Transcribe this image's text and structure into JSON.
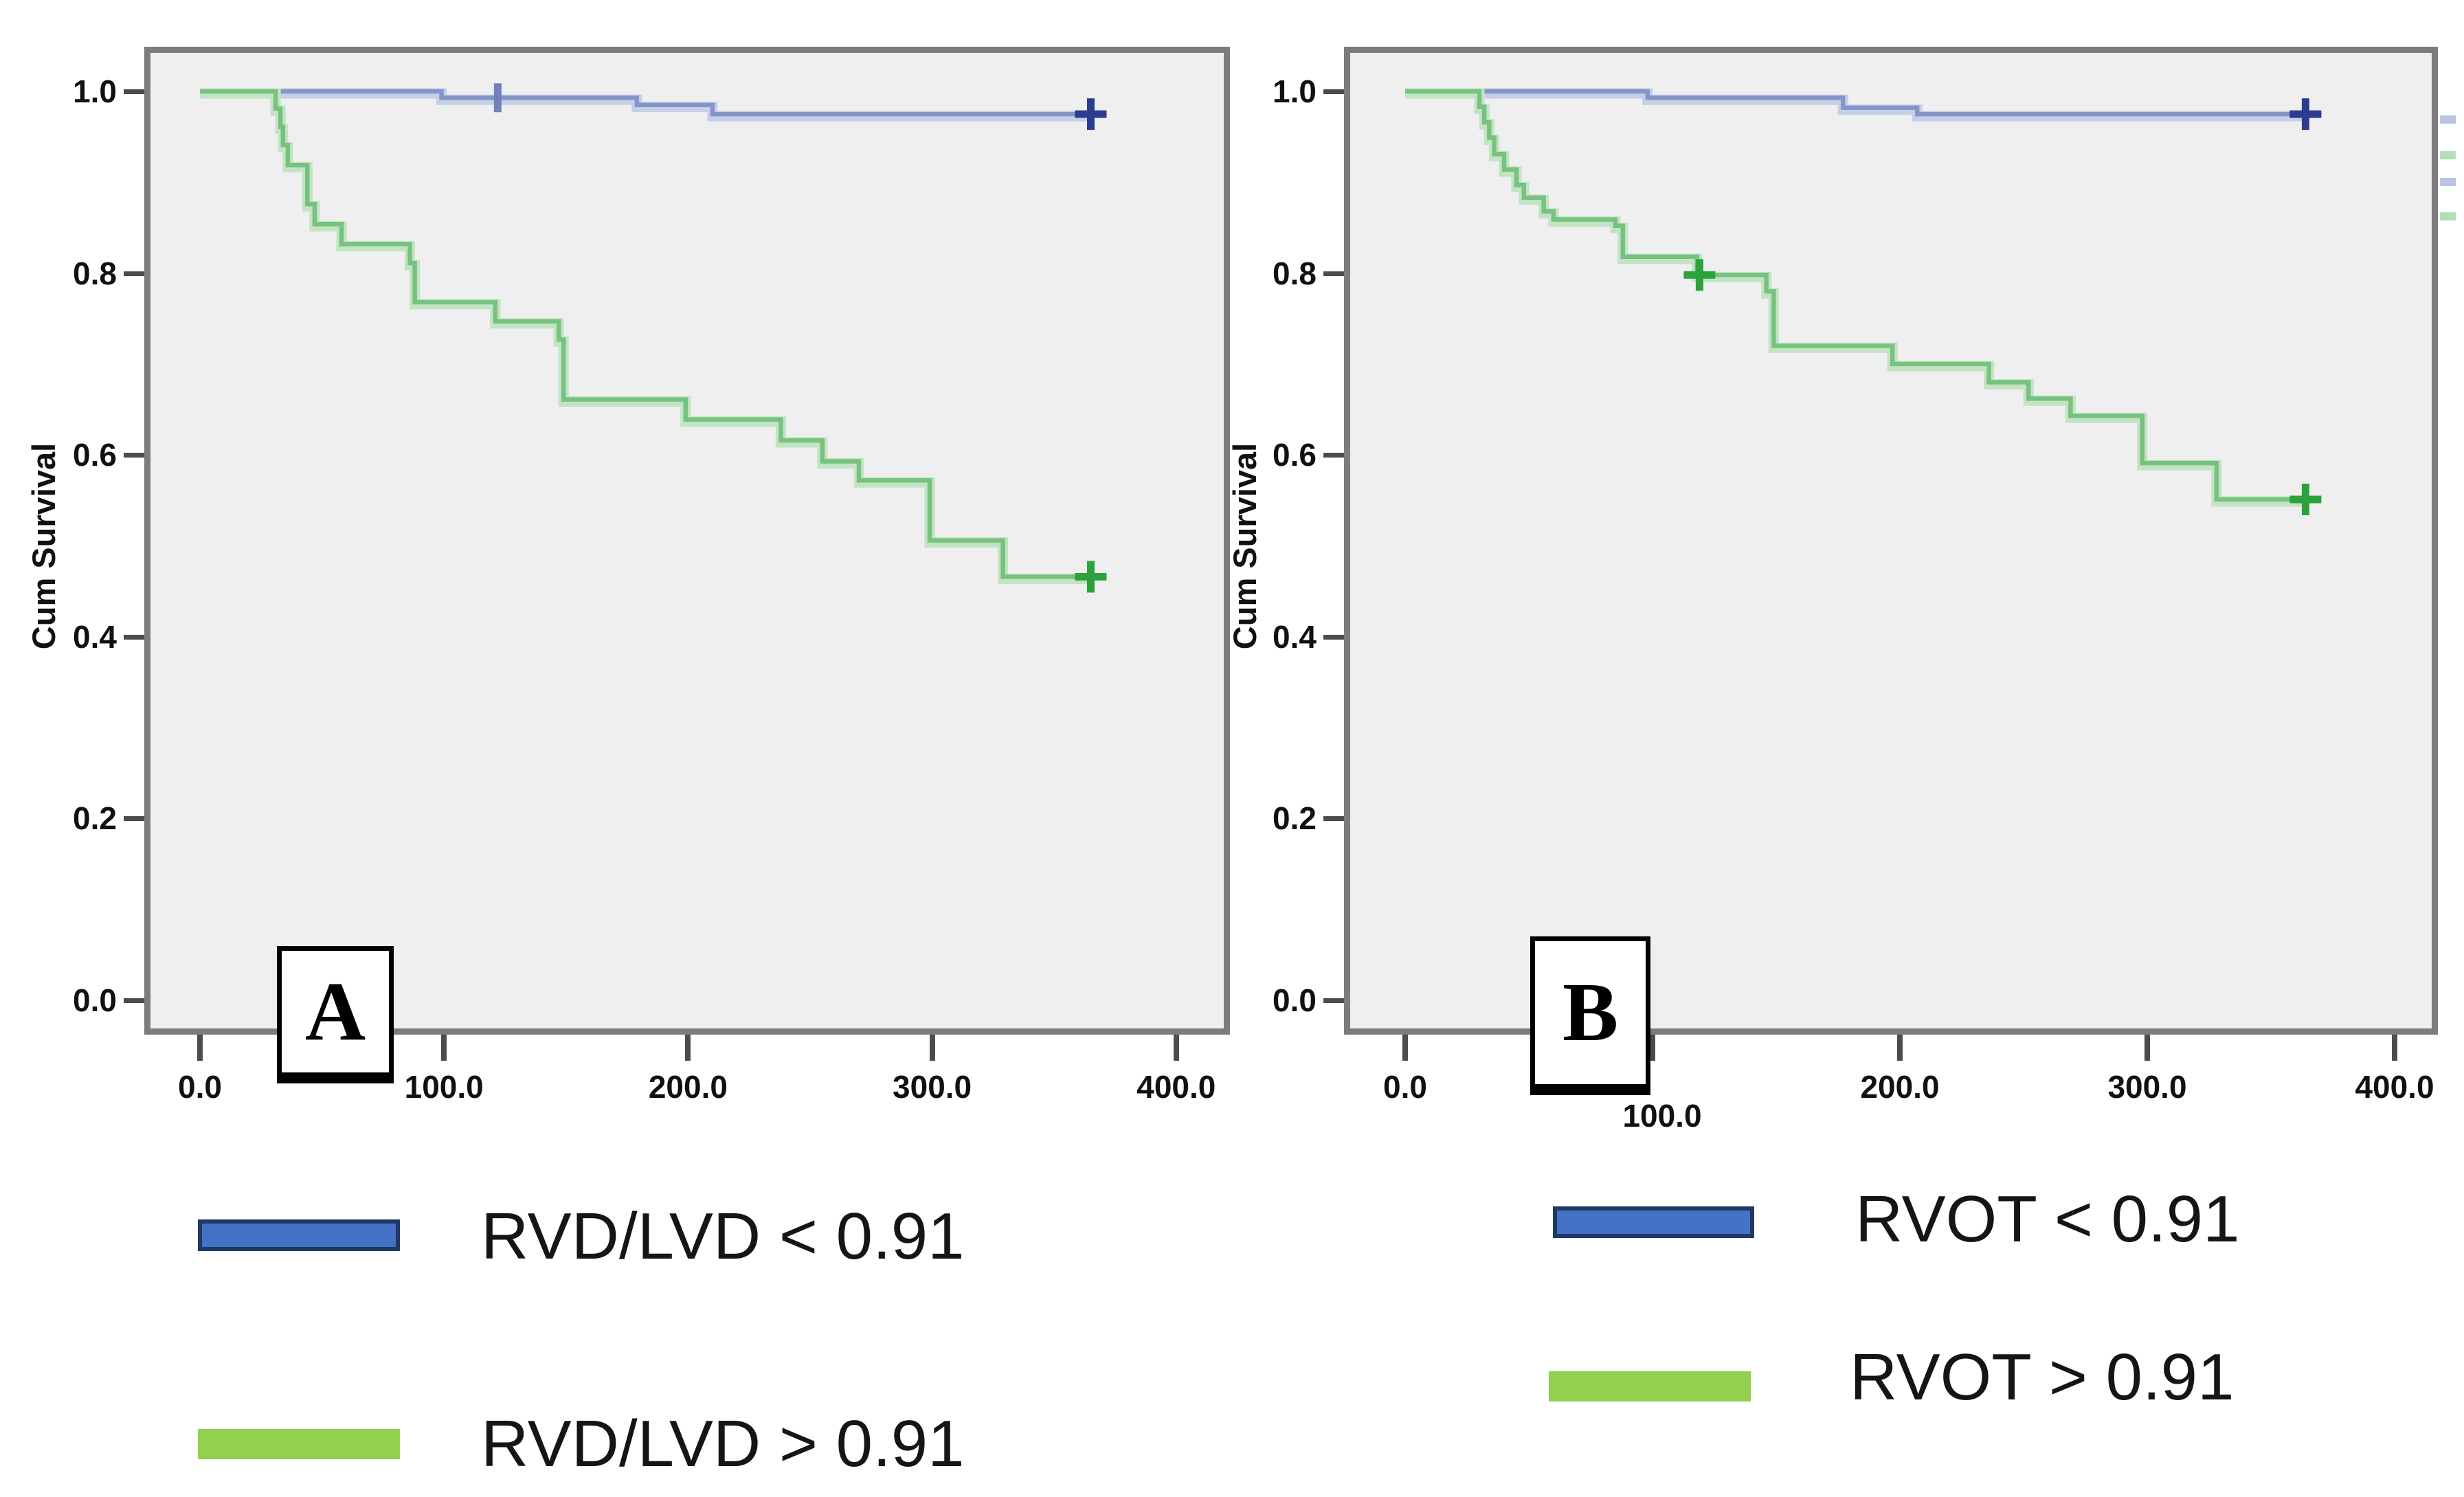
{
  "palette": {
    "blue_line": "#8496c8",
    "blue_halo": "#c6cfe8",
    "blue_censor": "#2c3d8f",
    "blue_censor_tick": "#7181bb",
    "green_line": "#77c27f",
    "green_halo": "#c2e4c5",
    "green_censor": "#2ba33a",
    "legend_blue_fill": "#4472c4",
    "legend_blue_border": "#1f3864",
    "legend_green_fill": "#92d050",
    "plot_bg": "#efefef",
    "plot_border": "#7c7c7c",
    "tick_color": "#4c4c4c",
    "text_color": "#111111"
  },
  "panels": [
    {
      "letter": "A",
      "y_axis_title": "Cum Survival"
    },
    {
      "letter": "B",
      "y_axis_title": "Cum Survival"
    }
  ],
  "legends": [
    {
      "panel": "A",
      "items": [
        {
          "swatch": "blue",
          "label": "RVD/LVD < 0.91"
        },
        {
          "swatch": "green",
          "label": "RVD/LVD > 0.91"
        }
      ]
    },
    {
      "panel": "B",
      "items": [
        {
          "swatch": "blue",
          "label": "RVOT < 0.91"
        },
        {
          "swatch": "green",
          "label": "RVOT > 0.91"
        }
      ]
    }
  ],
  "edge_marks": [
    {
      "y": 168,
      "color": "blue"
    },
    {
      "y": 220,
      "color": "green"
    },
    {
      "y": 259,
      "color": "blue"
    },
    {
      "y": 309,
      "color": "green"
    }
  ],
  "chart_data": [
    {
      "panel": "A",
      "type": "line",
      "subtype": "kaplan-meier-step",
      "title": "",
      "xlabel": "",
      "ylabel": "Cum Survival",
      "xlim": [
        0,
        422
      ],
      "ylim": [
        0,
        1.04
      ],
      "grid": false,
      "legend_position": "below",
      "x_ticks": [
        {
          "v": 0,
          "label": "0.0"
        },
        {
          "v": 100,
          "label": "100.0"
        },
        {
          "v": 200,
          "label": "200.0"
        },
        {
          "v": 300,
          "label": "300.0"
        },
        {
          "v": 400,
          "label": "400.0"
        }
      ],
      "y_ticks": [
        {
          "v": 1.0,
          "label": "1.0"
        },
        {
          "v": 0.8,
          "label": "0.8"
        },
        {
          "v": 0.6,
          "label": "0.6"
        },
        {
          "v": 0.4,
          "label": "0.4"
        },
        {
          "v": 0.2,
          "label": "0.2"
        },
        {
          "v": 0.0,
          "label": "0.0"
        }
      ],
      "series": [
        {
          "name": "RVD/LVD < 0.91",
          "color": "blue",
          "points": [
            [
              0,
              1.0
            ],
            [
              99,
              0.993
            ],
            [
              179,
              0.985
            ],
            [
              210,
              0.975
            ],
            [
              365,
              0.975
            ]
          ],
          "censors": [
            {
              "t": 122,
              "s": 0.993,
              "mark": "tick"
            },
            {
              "t": 365,
              "s": 0.975,
              "mark": "plus"
            }
          ]
        },
        {
          "name": "RVD/LVD > 0.91",
          "color": "green",
          "points": [
            [
              0,
              1.0
            ],
            [
              31,
              0.981
            ],
            [
              33,
              0.961
            ],
            [
              34,
              0.941
            ],
            [
              36,
              0.919
            ],
            [
              44,
              0.876
            ],
            [
              47,
              0.854
            ],
            [
              58,
              0.832
            ],
            [
              86,
              0.811
            ],
            [
              88,
              0.768
            ],
            [
              121,
              0.747
            ],
            [
              147,
              0.727
            ],
            [
              149,
              0.661
            ],
            [
              199,
              0.639
            ],
            [
              238,
              0.616
            ],
            [
              255,
              0.593
            ],
            [
              270,
              0.572
            ],
            [
              299,
              0.506
            ],
            [
              329,
              0.466
            ],
            [
              365,
              0.466
            ]
          ],
          "censors": [
            {
              "t": 365,
              "s": 0.466,
              "mark": "plus"
            }
          ]
        }
      ]
    },
    {
      "panel": "B",
      "type": "line",
      "subtype": "kaplan-meier-step",
      "title": "",
      "xlabel": "",
      "ylabel": "Cum Survival",
      "xlim": [
        0,
        415
      ],
      "ylim": [
        0,
        1.04
      ],
      "grid": false,
      "legend_position": "below",
      "x_ticks": [
        {
          "v": 0,
          "label": "0.0"
        },
        {
          "v": 100,
          "label": "100.0"
        },
        {
          "v": 200,
          "label": "200.0"
        },
        {
          "v": 300,
          "label": "300.0"
        },
        {
          "v": 400,
          "label": "400.0"
        }
      ],
      "y_ticks": [
        {
          "v": 1.0,
          "label": "1.0"
        },
        {
          "v": 0.8,
          "label": "0.8"
        },
        {
          "v": 0.6,
          "label": "0.6"
        },
        {
          "v": 0.4,
          "label": "0.4"
        },
        {
          "v": 0.2,
          "label": "0.2"
        },
        {
          "v": 0.0,
          "label": "0.0"
        }
      ],
      "series": [
        {
          "name": "RVOT < 0.91",
          "color": "blue",
          "points": [
            [
              0,
              1.0
            ],
            [
              98,
              0.993
            ],
            [
              177,
              0.982
            ],
            [
              207,
              0.975
            ],
            [
              364,
              0.975
            ]
          ],
          "censors": [
            {
              "t": 364,
              "s": 0.975,
              "mark": "plus"
            }
          ]
        },
        {
          "name": "RVOT > 0.91",
          "color": "green",
          "points": [
            [
              0,
              1.0
            ],
            [
              30,
              0.983
            ],
            [
              32,
              0.966
            ],
            [
              34,
              0.949
            ],
            [
              36,
              0.931
            ],
            [
              40,
              0.914
            ],
            [
              45,
              0.897
            ],
            [
              48,
              0.883
            ],
            [
              56,
              0.868
            ],
            [
              60,
              0.859
            ],
            [
              85,
              0.852
            ],
            [
              88,
              0.818
            ],
            [
              118,
              0.798
            ],
            [
              146,
              0.78
            ],
            [
              149,
              0.72
            ],
            [
              197,
              0.7
            ],
            [
              236,
              0.68
            ],
            [
              252,
              0.662
            ],
            [
              269,
              0.643
            ],
            [
              298,
              0.591
            ],
            [
              328,
              0.551
            ],
            [
              364,
              0.551
            ]
          ],
          "censors": [
            {
              "t": 119,
              "s": 0.798,
              "mark": "plus"
            },
            {
              "t": 364,
              "s": 0.551,
              "mark": "plus"
            }
          ]
        }
      ]
    }
  ]
}
